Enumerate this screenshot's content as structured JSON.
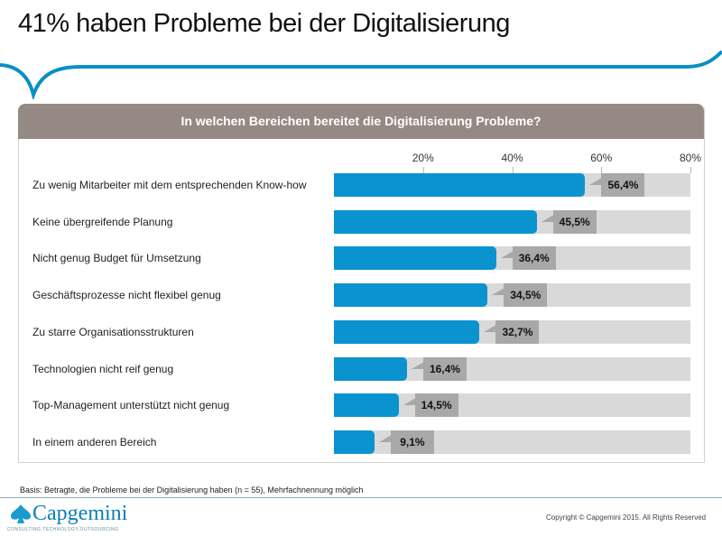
{
  "title": "41% haben Probleme bei der Digitalisierung",
  "panel_header": "In welchen Bereichen bereitet die Digitalisierung Probleme?",
  "chart_data": {
    "type": "bar",
    "orientation": "horizontal",
    "categories": [
      "Zu wenig Mitarbeiter mit dem entsprechenden Know-how",
      "Keine übergreifende Planung",
      "Nicht genug Budget für Umsetzung",
      "Geschäftsprozesse nicht flexibel genug",
      "Zu starre Organisationsstrukturen",
      "Technologien nicht reif genug",
      "Top-Management unterstützt nicht genug",
      "In einem anderen Bereich"
    ],
    "values": [
      56.4,
      45.5,
      36.4,
      34.5,
      32.7,
      16.4,
      14.5,
      9.1
    ],
    "value_labels": [
      "56,4%",
      "45,5%",
      "36,4%",
      "34,5%",
      "32,7%",
      "16,4%",
      "14,5%",
      "9,1%"
    ],
    "tick_labels": [
      "20%",
      "40%",
      "60%",
      "80%"
    ],
    "ticks": [
      20,
      40,
      60,
      80
    ],
    "xlim": [
      0,
      80
    ],
    "bar_color": "#0a93cf",
    "track_color": "#d9d9d9",
    "label_bg_color": "#a8a8a8"
  },
  "footnote": "Basis:  Betragte,  die Probleme bei der Digitalisierung haben (n = 55), Mehrfachnennung möglich",
  "logo": {
    "name": "Capgemini",
    "tagline": "CONSULTING.TECHNOLOGY.OUTSOURCING"
  },
  "copyright": "Copyright © Capgemini 2015. All Rights Reserved"
}
